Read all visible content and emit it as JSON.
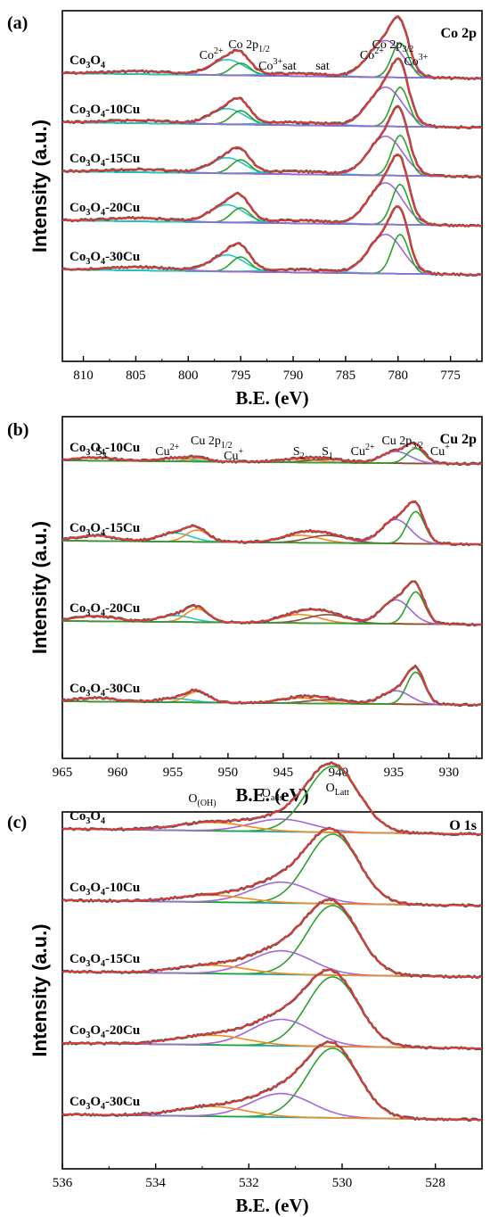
{
  "colors": {
    "data": "#555555",
    "envelope": "#e53935",
    "cyan": "#26c6c6",
    "green": "#2ca02c",
    "purple": "#a266d9",
    "orange": "#f28a1e",
    "olive": "#8c9a2a",
    "brown": "#8b4a3c",
    "baseline_a": "#2ec4d6",
    "baseline_b": "#f07a20",
    "baseline_c": "#1aa6a6"
  },
  "chart_data": [
    {
      "id": "a",
      "type": "line",
      "panel_label": "(a)",
      "corner_label": "Co 2p",
      "xlabel": "B.E. (eV)",
      "ylabel": "Intensity (a.u.)",
      "xlim": [
        812,
        772
      ],
      "xticks": [
        810,
        805,
        800,
        795,
        790,
        785,
        780,
        775
      ],
      "series": [
        {
          "label_main": "Co",
          "label_sub": "3",
          "label_mid": "O",
          "label_sub2": "4",
          "label_tail": ""
        },
        {
          "label_main": "Co",
          "label_sub": "3",
          "label_mid": "O",
          "label_sub2": "4",
          "label_tail": "-10Cu"
        },
        {
          "label_main": "Co",
          "label_sub": "3",
          "label_mid": "O",
          "label_sub2": "4",
          "label_tail": "-15Cu"
        },
        {
          "label_main": "Co",
          "label_sub": "3",
          "label_mid": "O",
          "label_sub2": "4",
          "label_tail": "-20Cu"
        },
        {
          "label_main": "Co",
          "label_sub": "3",
          "label_mid": "O",
          "label_sub2": "4",
          "label_tail": "-30Cu"
        }
      ],
      "components": [
        {
          "color_key": "cyan",
          "center": 796.3,
          "width": 1.6,
          "amp": [
            0.32,
            0.32,
            0.32,
            0.36,
            0.34
          ]
        },
        {
          "color_key": "green",
          "center": 795.0,
          "width": 0.9,
          "amp": [
            0.25,
            0.28,
            0.28,
            0.3,
            0.3
          ]
        },
        {
          "color_key": "purple",
          "center": 781.2,
          "width": 1.6,
          "amp": [
            0.75,
            0.8,
            0.8,
            0.85,
            0.8
          ]
        },
        {
          "color_key": "green",
          "center": 779.8,
          "width": 0.8,
          "amp": [
            0.7,
            0.8,
            0.82,
            0.82,
            0.8
          ]
        },
        {
          "color_key": "cyan",
          "center": 789.5,
          "width": 3.0,
          "amp": [
            0.05,
            0.06,
            0.06,
            0.06,
            0.06
          ]
        },
        {
          "color_key": "purple",
          "center": 804.5,
          "width": 3.0,
          "amp": [
            0.06,
            0.06,
            0.06,
            0.07,
            0.07
          ]
        }
      ],
      "peak_labels": [
        {
          "main": "Co",
          "sup": "2+",
          "sub": "",
          "tail": "",
          "x": 797.8,
          "row": 0
        },
        {
          "main": "Co 2p",
          "sup": "",
          "sub": "1/2",
          "tail": "",
          "x": 794.2,
          "row": -1
        },
        {
          "main": "Co",
          "sup": "3+",
          "sub": "",
          "tail": "sat",
          "x": 791.5,
          "row": 1
        },
        {
          "main": "sat",
          "sup": "",
          "sub": "",
          "tail": "",
          "x": 787.2,
          "row": 1
        },
        {
          "main": "Co",
          "sup": "2+",
          "sub": "",
          "tail": "",
          "x": 782.5,
          "row": 0
        },
        {
          "main": "Co 2p",
          "sup": "",
          "sub": "3/2",
          "tail": "",
          "x": 780.5,
          "row": -1
        },
        {
          "main": "Co",
          "sup": "3+",
          "sub": "",
          "tail": "",
          "x": 778.3,
          "row": 0.6
        }
      ]
    },
    {
      "id": "b",
      "type": "line",
      "panel_label": "(b)",
      "corner_label": "Cu 2p",
      "xlabel": "B.E. (eV)",
      "ylabel": "Intensity (a.u.)",
      "xlim": [
        965,
        927
      ],
      "xticks": [
        965,
        960,
        955,
        950,
        945,
        940,
        935,
        930
      ],
      "series": [
        {
          "label_main": "Co",
          "label_sub": "3",
          "label_mid": "O",
          "label_sub2": "4",
          "label_tail": "-10Cu"
        },
        {
          "label_main": "Co",
          "label_sub": "3",
          "label_mid": "O",
          "label_sub2": "4",
          "label_tail": "-15Cu"
        },
        {
          "label_main": "Co",
          "label_sub": "3",
          "label_mid": "O",
          "label_sub2": "4",
          "label_tail": "-20Cu"
        },
        {
          "label_main": "Co",
          "label_sub": "3",
          "label_mid": "O",
          "label_sub2": "4",
          "label_tail": "-30Cu"
        }
      ],
      "components": [
        {
          "color_key": "olive",
          "center": 962.0,
          "width": 1.8,
          "amp": [
            0.06,
            0.1,
            0.1,
            0.07
          ]
        },
        {
          "color_key": "cyan",
          "center": 954.8,
          "width": 1.5,
          "amp": [
            0.06,
            0.16,
            0.12,
            0.07
          ]
        },
        {
          "color_key": "orange",
          "center": 952.8,
          "width": 1.0,
          "amp": [
            0.06,
            0.22,
            0.25,
            0.2
          ]
        },
        {
          "color_key": "orange",
          "center": 943.5,
          "width": 1.8,
          "amp": [
            0.06,
            0.14,
            0.16,
            0.1
          ]
        },
        {
          "color_key": "brown",
          "center": 941.0,
          "width": 1.8,
          "amp": [
            0.06,
            0.14,
            0.16,
            0.07
          ]
        },
        {
          "color_key": "purple",
          "center": 934.8,
          "width": 1.3,
          "amp": [
            0.22,
            0.45,
            0.45,
            0.25
          ]
        },
        {
          "color_key": "green",
          "center": 933.0,
          "width": 0.8,
          "amp": [
            0.28,
            0.6,
            0.6,
            0.6
          ]
        }
      ],
      "peak_labels": [
        {
          "main": "S",
          "sup": "",
          "sub": "3",
          "tail": "",
          "x": 961.5,
          "row": 1
        },
        {
          "main": "Cu",
          "sup": "2+",
          "sub": "",
          "tail": "",
          "x": 955.5,
          "row": 1
        },
        {
          "main": "Cu 2p",
          "sup": "",
          "sub": "1/2",
          "tail": "",
          "x": 951.5,
          "row": 0
        },
        {
          "main": "Cu",
          "sup": "+",
          "sub": "",
          "tail": "",
          "x": 949.5,
          "row": 1.4
        },
        {
          "main": "S",
          "sup": "",
          "sub": "2",
          "tail": "",
          "x": 943.6,
          "row": 1
        },
        {
          "main": "S",
          "sup": "",
          "sub": "1",
          "tail": "",
          "x": 941.0,
          "row": 1
        },
        {
          "main": "Cu",
          "sup": "2+",
          "sub": "",
          "tail": "",
          "x": 937.8,
          "row": 1
        },
        {
          "main": "Cu 2p",
          "sup": "",
          "sub": "3/2",
          "tail": "",
          "x": 934.2,
          "row": 0
        },
        {
          "main": "Cu",
          "sup": "+",
          "sub": "",
          "tail": "",
          "x": 930.8,
          "row": 1
        }
      ]
    },
    {
      "id": "c",
      "type": "line",
      "panel_label": "(c)",
      "corner_label": "O 1s",
      "xlabel": "B.E. (eV)",
      "ylabel": "Intensity (a.u.)",
      "xlim": [
        536,
        527
      ],
      "xticks": [
        536,
        534,
        532,
        530,
        528
      ],
      "series": [
        {
          "label_main": "Co",
          "label_sub": "3",
          "label_mid": "O",
          "label_sub2": "4",
          "label_tail": ""
        },
        {
          "label_main": "Co",
          "label_sub": "3",
          "label_mid": "O",
          "label_sub2": "4",
          "label_tail": "-10Cu"
        },
        {
          "label_main": "Co",
          "label_sub": "3",
          "label_mid": "O",
          "label_sub2": "4",
          "label_tail": "-15Cu"
        },
        {
          "label_main": "Co",
          "label_sub": "3",
          "label_mid": "O",
          "label_sub2": "4",
          "label_tail": "-20Cu"
        },
        {
          "label_main": "Co",
          "label_sub": "3",
          "label_mid": "O",
          "label_sub2": "4",
          "label_tail": "-30Cu"
        }
      ],
      "components": [
        {
          "color_key": "green",
          "center": 530.2,
          "width": 0.55,
          "amp": [
            0.95,
            1.0,
            1.0,
            1.0,
            1.0
          ]
        },
        {
          "color_key": "purple",
          "center": 531.3,
          "width": 0.65,
          "amp": [
            0.18,
            0.3,
            0.34,
            0.38,
            0.34
          ]
        },
        {
          "color_key": "orange",
          "center": 532.8,
          "width": 0.75,
          "amp": [
            0.12,
            0.1,
            0.12,
            0.14,
            0.14
          ]
        }
      ],
      "peak_labels": [
        {
          "main": "O",
          "sup": "",
          "sub": "(OH)",
          "tail": "",
          "x": 533.0,
          "row": 0
        },
        {
          "main": "O",
          "sup": "",
          "sub": "ads",
          "tail": "",
          "x": 531.5,
          "row": -0.5
        },
        {
          "main": "O",
          "sup": "",
          "sub": "Latt",
          "tail": "",
          "x": 530.1,
          "row": -1
        }
      ]
    }
  ]
}
